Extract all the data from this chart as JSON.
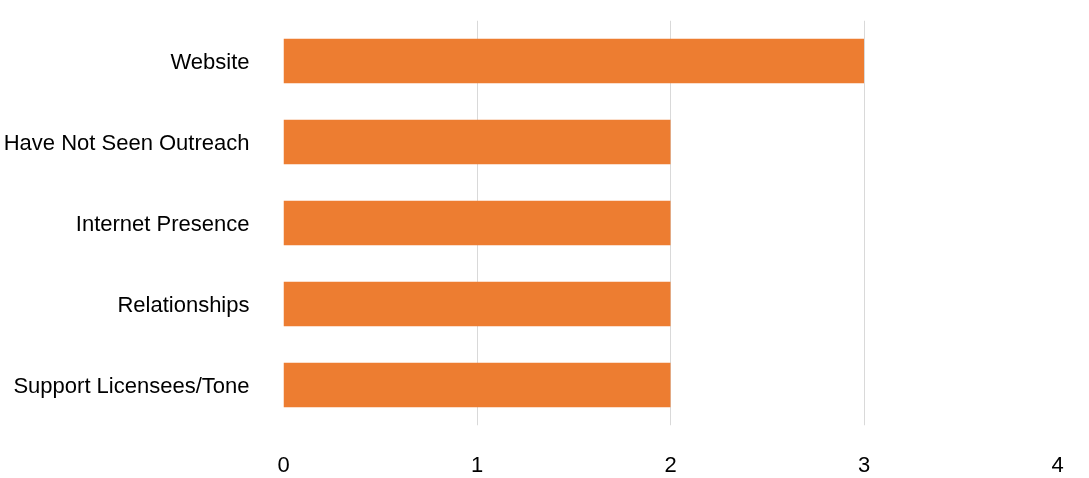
{
  "chart_data": {
    "type": "bar",
    "orientation": "horizontal",
    "categories": [
      "Website",
      "Have Not Seen Outreach",
      "Internet Presence",
      "Relationships",
      "Support Licensees/Tone"
    ],
    "values": [
      3,
      2,
      2,
      2,
      2
    ],
    "color": "#ed7d31",
    "xlim": [
      0,
      4
    ],
    "xticks": [
      0,
      1,
      2,
      3,
      4
    ],
    "grid": "x"
  }
}
